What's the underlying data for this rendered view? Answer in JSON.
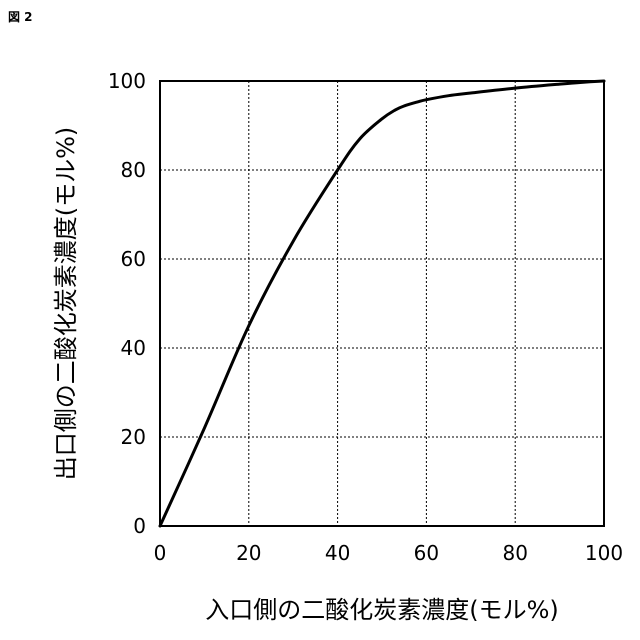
{
  "figure_label": "図 2",
  "chart_data": {
    "type": "line",
    "title": "",
    "xlabel": "入口側の二酸化炭素濃度(モル%)",
    "ylabel": "出口側の二酸化炭素濃度(モル%)",
    "xlim": [
      0,
      100
    ],
    "ylim": [
      0,
      100
    ],
    "xticks": [
      "0",
      "20",
      "40",
      "60",
      "80",
      "100"
    ],
    "yticks": [
      "0",
      "20",
      "40",
      "60",
      "80",
      "100"
    ],
    "grid": true,
    "series": [
      {
        "color": "#000000",
        "x": [
          0,
          10,
          20,
          30,
          40,
          45,
          50,
          53,
          55,
          58,
          60,
          65,
          70,
          80,
          90,
          95,
          100
        ],
        "y": [
          0,
          22,
          45,
          64,
          80,
          87,
          91.5,
          93.5,
          94.4,
          95.3,
          95.8,
          96.7,
          97.3,
          98.4,
          99.3,
          99.7,
          100
        ]
      }
    ]
  }
}
